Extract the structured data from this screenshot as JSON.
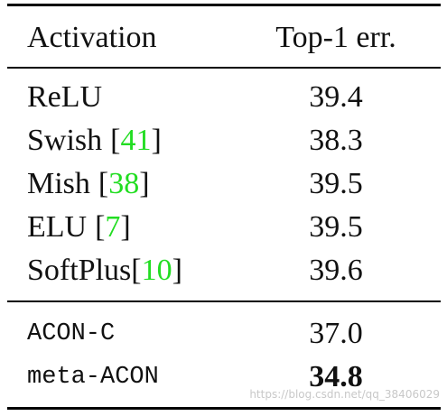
{
  "table": {
    "header": [
      "Activation",
      "Top-1 err."
    ],
    "rows": [
      {
        "name": "ReLU",
        "value": "39.4"
      },
      {
        "name": "Swish",
        "cite": {
          "open": "[",
          "ref": "41",
          "close": "]"
        },
        "value": "38.3"
      },
      {
        "name": "Mish",
        "cite": {
          "open": "[",
          "ref": "38",
          "close": "]"
        },
        "value": "39.5"
      },
      {
        "name": "ELU",
        "cite": {
          "open": "[",
          "ref": "7",
          "close": "]"
        },
        "value": "39.5"
      },
      {
        "name": "SoftPlus",
        "cite": {
          "open": "[",
          "ref": "10",
          "close": "]"
        },
        "value": "39.6"
      }
    ],
    "acon_rows": [
      {
        "name": "ACON-C",
        "value": "37.0"
      },
      {
        "name": "meta-ACON",
        "value": "34.8"
      }
    ]
  },
  "watermark": "https://blog.csdn.net/qq_38406029"
}
